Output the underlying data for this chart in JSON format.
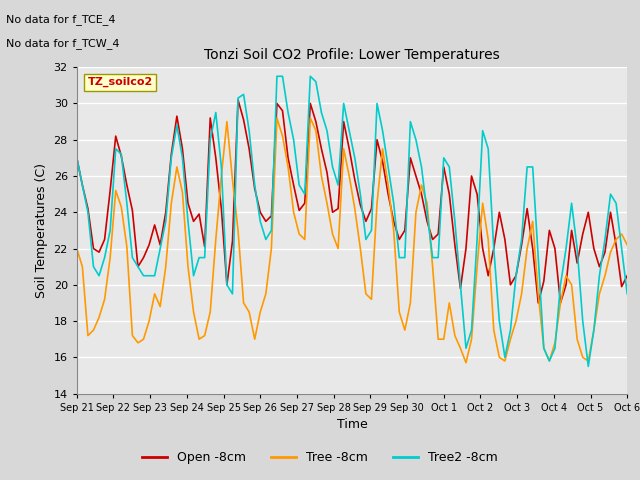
{
  "title": "Tonzi Soil CO2 Profile: Lower Temperatures",
  "xlabel": "Time",
  "ylabel": "Soil Temperatures (C)",
  "ylim": [
    14,
    32
  ],
  "yticks": [
    14,
    16,
    18,
    20,
    22,
    24,
    26,
    28,
    30,
    32
  ],
  "note_line1": "No data for f_TCE_4",
  "note_line2": "No data for f_TCW_4",
  "box_label": "TZ_soilco2",
  "legend_entries": [
    "Open -8cm",
    "Tree -8cm",
    "Tree2 -8cm"
  ],
  "line_colors": [
    "#cc0000",
    "#ff9900",
    "#00cccc"
  ],
  "fig_facecolor": "#d8d8d8",
  "plot_facecolor": "#e8e8e8",
  "x_tick_labels": [
    "Sep 21",
    "Sep 22",
    "Sep 23",
    "Sep 24",
    "Sep 25",
    "Sep 26",
    "Sep 27",
    "Sep 28",
    "Sep 29",
    "Sep 30",
    "Oct 1",
    "Oct 2",
    "Oct 3",
    "Oct 4",
    "Oct 5",
    "Oct 6"
  ],
  "open_8cm": [
    27.0,
    25.5,
    24.2,
    22.0,
    21.8,
    22.5,
    25.2,
    28.2,
    27.1,
    25.5,
    24.1,
    21.0,
    21.5,
    22.2,
    23.3,
    22.2,
    24.0,
    27.2,
    29.3,
    27.5,
    24.5,
    23.5,
    23.9,
    22.1,
    29.2,
    27.0,
    24.2,
    20.0,
    22.4,
    30.2,
    29.1,
    27.5,
    25.3,
    24.0,
    23.5,
    23.8,
    30.0,
    29.6,
    27.0,
    25.5,
    24.1,
    24.5,
    30.0,
    29.0,
    27.5,
    26.2,
    24.0,
    24.2,
    29.0,
    27.5,
    25.8,
    24.4,
    23.5,
    24.2,
    28.0,
    26.8,
    25.0,
    23.5,
    22.5,
    23.0,
    27.0,
    26.0,
    25.0,
    23.5,
    22.5,
    22.8,
    26.5,
    25.0,
    22.2,
    19.8,
    22.0,
    26.0,
    25.0,
    22.0,
    20.5,
    22.0,
    24.0,
    22.5,
    20.0,
    20.5,
    22.2,
    24.2,
    22.0,
    19.0,
    20.2,
    23.0,
    22.0,
    19.0,
    20.0,
    23.0,
    21.2,
    22.8,
    24.0,
    22.0,
    21.0,
    21.8,
    24.0,
    22.2,
    19.9,
    20.5
  ],
  "tree_8cm": [
    22.0,
    21.0,
    17.2,
    17.5,
    18.2,
    19.2,
    21.5,
    25.2,
    24.3,
    22.1,
    17.2,
    16.8,
    17.0,
    18.0,
    19.5,
    18.8,
    21.0,
    24.5,
    26.5,
    25.1,
    21.0,
    18.5,
    17.0,
    17.2,
    18.5,
    22.5,
    26.0,
    29.0,
    25.8,
    23.0,
    19.0,
    18.5,
    17.0,
    18.5,
    19.5,
    22.0,
    29.2,
    28.2,
    26.5,
    24.0,
    22.8,
    22.5,
    29.2,
    28.5,
    26.0,
    24.5,
    22.8,
    22.0,
    27.5,
    26.0,
    24.2,
    22.0,
    19.5,
    19.2,
    24.5,
    27.5,
    25.5,
    23.0,
    18.5,
    17.5,
    19.0,
    24.0,
    25.5,
    24.5,
    21.0,
    17.0,
    17.0,
    19.0,
    17.2,
    16.5,
    15.7,
    17.0,
    21.0,
    24.5,
    22.5,
    17.5,
    16.0,
    15.8,
    17.0,
    18.0,
    19.5,
    22.0,
    23.5,
    19.5,
    16.5,
    15.8,
    16.8,
    19.0,
    20.5,
    20.0,
    17.0,
    16.0,
    15.8,
    17.5,
    19.5,
    20.5,
    21.8,
    22.5,
    22.8,
    22.2
  ],
  "tree2_8cm": [
    27.0,
    25.5,
    24.0,
    21.0,
    20.5,
    21.5,
    23.0,
    27.5,
    27.2,
    24.5,
    21.5,
    21.0,
    20.5,
    20.5,
    20.5,
    22.0,
    23.5,
    27.0,
    28.8,
    27.0,
    23.5,
    20.5,
    21.5,
    21.5,
    28.0,
    29.5,
    26.5,
    20.0,
    19.5,
    30.3,
    30.5,
    28.5,
    25.5,
    23.5,
    22.5,
    23.0,
    31.5,
    31.5,
    29.5,
    28.0,
    25.5,
    25.0,
    31.5,
    31.2,
    29.5,
    28.5,
    26.5,
    25.5,
    30.0,
    28.5,
    27.0,
    25.0,
    22.5,
    23.0,
    30.0,
    28.5,
    26.5,
    24.5,
    21.5,
    21.5,
    29.0,
    28.0,
    26.5,
    24.0,
    21.5,
    21.5,
    27.0,
    26.5,
    23.5,
    20.0,
    16.5,
    17.5,
    22.5,
    28.5,
    27.5,
    22.0,
    18.0,
    16.0,
    17.5,
    20.5,
    22.5,
    26.5,
    26.5,
    21.5,
    16.5,
    15.8,
    16.5,
    20.0,
    22.0,
    24.5,
    22.0,
    18.0,
    15.5,
    17.5,
    20.5,
    22.5,
    25.0,
    24.5,
    22.0,
    19.5
  ]
}
